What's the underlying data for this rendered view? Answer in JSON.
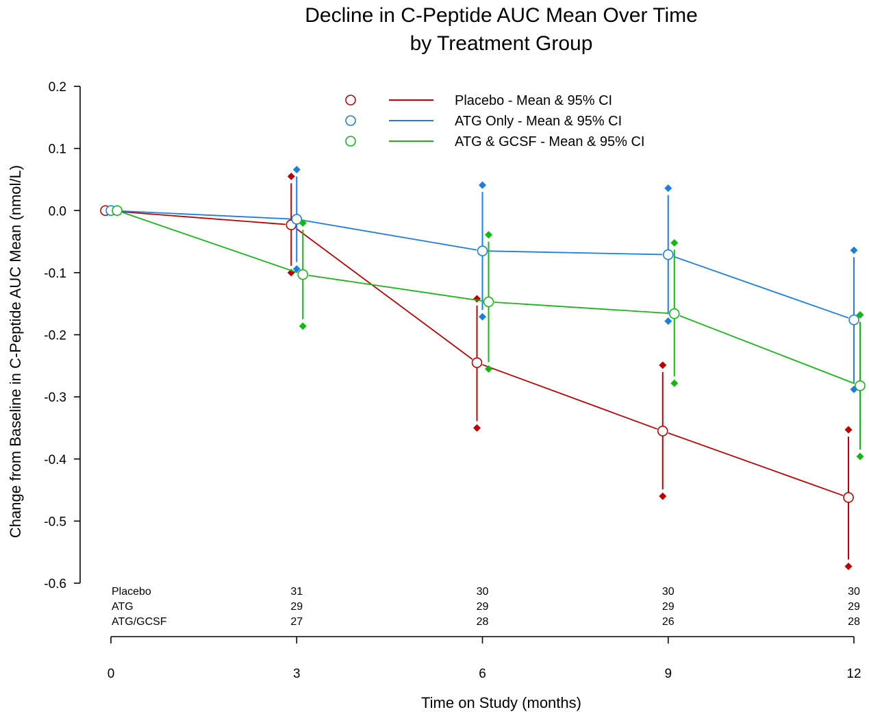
{
  "chart_data": {
    "type": "line",
    "title": [
      "Decline in C-Peptide AUC Mean Over Time",
      "by Treatment Group"
    ],
    "xlabel": "Time on Study (months)",
    "ylabel": "Change from Baseline in C-Peptide AUC Mean (nmol/L)",
    "x_ticks": [
      "0",
      "3",
      "6",
      "9",
      "12"
    ],
    "y_ticks": [
      "0.2",
      "0.1",
      "0.0",
      "-0.1",
      "-0.2",
      "-0.3",
      "-0.4",
      "-0.5",
      "-0.6"
    ],
    "ylim": [
      -0.6,
      0.2
    ],
    "xlim": [
      0,
      12
    ],
    "grid": false,
    "legend_position": "top-center",
    "series": [
      {
        "name": "Placebo - Mean & 95% CI",
        "color": "#c00000",
        "x": [
          0,
          3,
          6,
          9,
          12
        ],
        "mean": [
          0.0,
          -0.023,
          -0.245,
          -0.355,
          -0.462
        ],
        "ci_upper": [
          null,
          0.055,
          -0.142,
          -0.249,
          -0.353
        ],
        "ci_lower": [
          null,
          -0.1,
          -0.35,
          -0.46,
          -0.573
        ]
      },
      {
        "name": "ATG Only - Mean & 95% CI",
        "color": "#1a7fe0",
        "x": [
          0,
          3,
          6,
          9,
          12
        ],
        "mean": [
          0.0,
          -0.014,
          -0.065,
          -0.071,
          -0.176
        ],
        "ci_upper": [
          null,
          0.066,
          0.041,
          0.036,
          -0.064
        ],
        "ci_lower": [
          null,
          -0.094,
          -0.171,
          -0.178,
          -0.288
        ]
      },
      {
        "name": "ATG & GCSF - Mean & 95% CI",
        "color": "#14b814",
        "x": [
          0,
          3,
          6,
          9,
          12
        ],
        "mean": [
          0.0,
          -0.103,
          -0.147,
          -0.166,
          -0.282
        ],
        "ci_upper": [
          null,
          -0.02,
          -0.039,
          -0.052,
          -0.168
        ],
        "ci_lower": [
          null,
          -0.186,
          -0.255,
          -0.278,
          -0.396
        ]
      }
    ],
    "n_table": {
      "rows": [
        {
          "label": "Placebo",
          "counts": [
            "31",
            "30",
            "30",
            "30"
          ]
        },
        {
          "label": "ATG",
          "counts": [
            "29",
            "29",
            "29",
            "29"
          ]
        },
        {
          "label": "ATG/GCSF",
          "counts": [
            "27",
            "28",
            "26",
            "28"
          ]
        }
      ]
    }
  }
}
